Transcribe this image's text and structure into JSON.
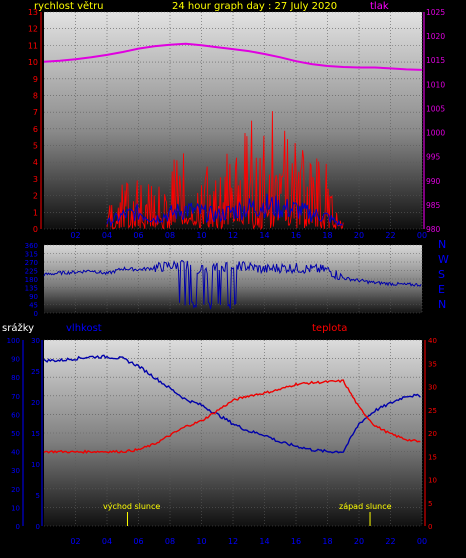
{
  "chart_data": [
    {
      "type": "line",
      "title": "24 hour graph day : 27 July 2020",
      "left_label": "rychlost větru",
      "right_label": "tlak",
      "x_ticks": [
        "02",
        "04",
        "06",
        "08",
        "10",
        "12",
        "14",
        "16",
        "18",
        "20",
        "22",
        "00"
      ],
      "ylim_left": [
        0,
        13
      ],
      "y_ticks_left": [
        "0",
        "1",
        "2",
        "3",
        "4",
        "5",
        "6",
        "7",
        "8",
        "9",
        "10",
        "11",
        "12",
        "13"
      ],
      "ylim_right": [
        980,
        1025
      ],
      "y_ticks_right": [
        "980",
        "985",
        "990",
        "995",
        "1000",
        "1005",
        "1010",
        "1015",
        "1020",
        "1025"
      ],
      "colors": {
        "pressure": "#e000e0",
        "gust": "#ff0000",
        "wind": "#0000cc",
        "title": "#ffff00",
        "left_label": "#ffff00",
        "right_label": "#ff00ff"
      },
      "series": [
        {
          "key": "pressure",
          "axis": "right",
          "x": [
            0,
            1,
            2,
            3,
            4,
            5,
            6,
            7,
            8,
            9,
            10,
            11,
            12,
            13,
            14,
            15,
            16,
            17,
            18,
            19,
            20,
            21,
            22,
            23,
            24
          ],
          "values": [
            1014.7,
            1014.9,
            1015.2,
            1015.6,
            1016.1,
            1016.7,
            1017.4,
            1017.9,
            1018.2,
            1018.4,
            1018.1,
            1017.7,
            1017.3,
            1016.9,
            1016.3,
            1015.6,
            1014.8,
            1014.2,
            1013.8,
            1013.6,
            1013.5,
            1013.5,
            1013.3,
            1013.1,
            1013.0
          ]
        },
        {
          "key": "gust",
          "axis": "left",
          "x": [
            4,
            5,
            6,
            7,
            8,
            9,
            10,
            11,
            12,
            13,
            14,
            15,
            16,
            17,
            18,
            19
          ],
          "values": [
            1.2,
            2.5,
            3.1,
            2.2,
            3.8,
            4.6,
            3.9,
            3.3,
            4.9,
            5.8,
            7.0,
            6.4,
            6.0,
            4.1,
            3.5,
            0.9
          ]
        },
        {
          "key": "wind",
          "axis": "left",
          "x": [
            4,
            5,
            6,
            7,
            8,
            9,
            10,
            11,
            12,
            13,
            14,
            15,
            16,
            17,
            18,
            19
          ],
          "values": [
            0.4,
            0.9,
            1.1,
            0.7,
            1.0,
            1.3,
            1.1,
            0.9,
            1.2,
            1.4,
            1.6,
            1.4,
            1.3,
            1.0,
            0.8,
            0.2
          ]
        }
      ]
    },
    {
      "type": "line",
      "direction_labels": [
        "N",
        "W",
        "S",
        "E",
        "N"
      ],
      "y_ticks": [
        "0",
        "45",
        "90",
        "135",
        "180",
        "225",
        "270",
        "315",
        "360"
      ],
      "ylim": [
        0,
        360
      ],
      "x_ticks": [
        "02",
        "04",
        "06",
        "08",
        "10",
        "12",
        "14",
        "16",
        "18",
        "20",
        "22",
        "00"
      ],
      "colors": {
        "line": "#0000aa",
        "labels": "#0000ff"
      },
      "series": [
        {
          "key": "direction",
          "x": [
            0,
            1,
            2,
            3,
            4,
            5,
            6,
            7,
            8,
            9,
            10,
            11,
            12,
            13,
            14,
            15,
            16,
            17,
            18,
            19,
            20,
            21,
            22,
            23,
            24
          ],
          "values": [
            203,
            212,
            216,
            225,
            208,
            235,
            230,
            238,
            250,
            255,
            230,
            240,
            255,
            245,
            230,
            240,
            238,
            232,
            228,
            185,
            172,
            160,
            155,
            150,
            150
          ]
        }
      ]
    },
    {
      "type": "line",
      "left_label_1": "srážky",
      "left_label_2": "vlhkost",
      "right_label": "teplota",
      "y_ticks_humidity": [
        "0",
        "5",
        "10",
        "15",
        "20",
        "25",
        "30"
      ],
      "ylim_humidity": [
        0,
        30
      ],
      "y_ticks_percent": [
        "0",
        "10",
        "20",
        "30",
        "40",
        "50",
        "60",
        "70",
        "80",
        "90",
        "100"
      ],
      "ylim_percent": [
        0,
        100
      ],
      "y_ticks_temp": [
        "0",
        "5",
        "10",
        "15",
        "20",
        "25",
        "30",
        "35",
        "40"
      ],
      "ylim_temp": [
        0,
        40
      ],
      "x_ticks": [
        "02",
        "04",
        "06",
        "08",
        "10",
        "12",
        "14",
        "16",
        "18",
        "20",
        "22",
        "00"
      ],
      "sunrise_label": "východ slunce",
      "sunset_label": "západ slunce",
      "sunrise_hour": 5.3,
      "sunset_hour": 20.7,
      "colors": {
        "humidity": "#0000aa",
        "temperature": "#ee0000",
        "srazky_label": "#ffffff",
        "vlhkost_label": "#0000ff",
        "teplota_label": "#ff0000",
        "sun_markers": "#ffff00"
      },
      "series": [
        {
          "key": "humidity",
          "axis": "percent",
          "x": [
            0,
            1,
            2,
            3,
            4,
            5,
            6,
            7,
            8,
            9,
            10,
            11,
            12,
            13,
            14,
            15,
            16,
            17,
            18,
            19,
            20,
            21,
            22,
            23,
            24
          ],
          "values": [
            89,
            89,
            90,
            91,
            91,
            90,
            86,
            80,
            74,
            68,
            65,
            60,
            55,
            51,
            49,
            45,
            43,
            41,
            40,
            40,
            55,
            62,
            66,
            70,
            70
          ]
        },
        {
          "key": "temperature",
          "axis": "temp",
          "x": [
            0,
            1,
            2,
            3,
            4,
            5,
            6,
            7,
            8,
            9,
            10,
            11,
            12,
            13,
            14,
            15,
            16,
            17,
            18,
            19,
            20,
            21,
            22,
            23,
            24
          ],
          "values": [
            16.0,
            16.0,
            15.9,
            16.0,
            16.0,
            16.0,
            16.4,
            17.6,
            19.5,
            21.4,
            22.6,
            24.8,
            27.0,
            28.0,
            28.6,
            29.4,
            30.5,
            30.8,
            31.0,
            31.2,
            25.5,
            21.6,
            19.8,
            18.6,
            18.0
          ]
        }
      ]
    }
  ]
}
